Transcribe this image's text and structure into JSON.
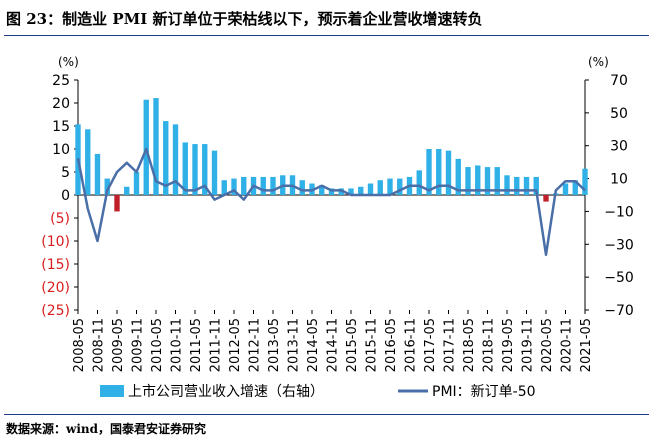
{
  "figure": {
    "title": "图 23：制造业 PMI 新订单位于荣枯线以下，预示着企业营收增速转负",
    "source": "数据来源：wind，国泰君安证券研究"
  },
  "colors": {
    "bar": "#2fb0e6",
    "bar_negative": "#c0202a",
    "line": "#4a6fa8",
    "negative_label": "#d81e1e",
    "rule": "#1f3c88"
  },
  "chart_data": {
    "type": "bar+line",
    "x": [
      "2008-05",
      "2008-08",
      "2008-11",
      "2009-02",
      "2009-05",
      "2009-08",
      "2009-11",
      "2010-02",
      "2010-05",
      "2010-08",
      "2010-11",
      "2011-02",
      "2011-05",
      "2011-08",
      "2011-11",
      "2012-02",
      "2012-05",
      "2012-08",
      "2012-11",
      "2013-02",
      "2013-05",
      "2013-08",
      "2013-11",
      "2014-02",
      "2014-05",
      "2014-08",
      "2014-11",
      "2015-02",
      "2015-05",
      "2015-08",
      "2015-11",
      "2016-02",
      "2016-05",
      "2016-08",
      "2016-11",
      "2017-02",
      "2017-05",
      "2017-08",
      "2017-11",
      "2018-02",
      "2018-05",
      "2018-08",
      "2018-11",
      "2019-02",
      "2019-05",
      "2019-08",
      "2019-11",
      "2020-02",
      "2020-05",
      "2020-08",
      "2020-11",
      "2021-02",
      "2021-05"
    ],
    "x_tick_labels": [
      "2008-05",
      "2008-11",
      "2009-05",
      "2009-11",
      "2010-05",
      "2010-11",
      "2011-05",
      "2011-11",
      "2012-05",
      "2012-11",
      "2013-05",
      "2013-11",
      "2014-05",
      "2014-11",
      "2015-05",
      "2015-11",
      "2016-05",
      "2016-11",
      "2017-05",
      "2017-11",
      "2018-05",
      "2018-11",
      "2019-05",
      "2019-11",
      "2020-05",
      "2020-11",
      "2021-05"
    ],
    "left_axis": {
      "unit": "(%)",
      "range": [
        -25,
        25
      ],
      "ticks": [
        25,
        20,
        15,
        10,
        5,
        0,
        -5,
        -10,
        -15,
        -20,
        -25
      ],
      "tick_labels": [
        "25",
        "20",
        "15",
        "10",
        "5",
        "0",
        "(5)",
        "(10)",
        "(15)",
        "(20)",
        "(25)"
      ]
    },
    "right_axis": {
      "unit": "(%)",
      "range": [
        -70,
        70
      ],
      "ticks": [
        70,
        50,
        30,
        10,
        -10,
        -30,
        -50,
        -70
      ],
      "tick_labels": [
        "70",
        "50",
        "30",
        "10",
        "−10",
        "−30",
        "−50",
        "−70"
      ]
    },
    "series": [
      {
        "name": "上市公司营业收入增速（右轴）",
        "type": "bar",
        "axis": "right",
        "values": [
          43,
          40,
          25,
          10,
          -10,
          5,
          14,
          58,
          59,
          45,
          43,
          32,
          31,
          31,
          27,
          9,
          10,
          11,
          11,
          11,
          11,
          12,
          12,
          9,
          7,
          6,
          4,
          4,
          4,
          5,
          7,
          9,
          10,
          10,
          11,
          15,
          28,
          28,
          27,
          22,
          17,
          18,
          17,
          17,
          12,
          11,
          11,
          11,
          -4,
          1,
          7,
          9,
          16
        ]
      },
      {
        "name": "PMI：新订单-50",
        "type": "line",
        "axis": "left",
        "values": [
          8,
          -3,
          -10,
          1,
          5,
          7,
          5,
          10,
          3,
          2,
          3,
          1,
          1,
          2,
          -1,
          0,
          1,
          -1,
          2,
          1,
          1,
          2,
          2,
          1,
          1,
          2,
          1,
          1,
          0,
          0,
          0,
          0,
          0,
          1,
          2,
          2,
          1,
          2,
          2,
          1,
          1,
          1,
          1,
          1,
          1,
          1,
          1,
          1,
          -13,
          1,
          3,
          3,
          1
        ]
      }
    ],
    "legend_position": "bottom"
  }
}
